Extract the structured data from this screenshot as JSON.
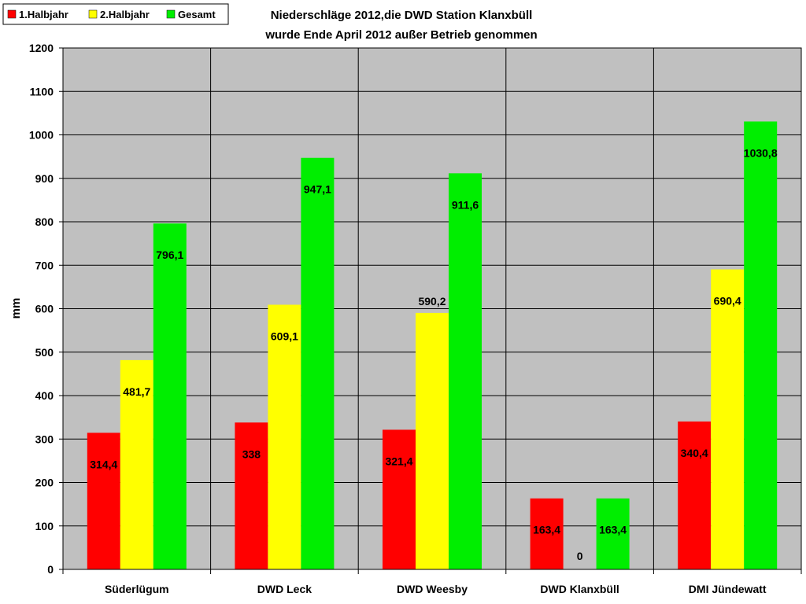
{
  "chart_data": {
    "type": "bar",
    "title_line1": "Niederschläge 2012,die DWD Station Klanxbüll",
    "title_line2": "wurde Ende April 2012 außer Betrieb genommen",
    "ylabel": "mm",
    "xlabel": "",
    "ylim": [
      0,
      1200
    ],
    "ytick_step": 100,
    "grid": true,
    "legend_position": "top-left",
    "categories": [
      "Süderlügum",
      "DWD Leck",
      "DWD Weesby",
      "DWD Klanxbüll",
      "DMI Jündewatt"
    ],
    "series": [
      {
        "name": "1.Halbjahr",
        "color": "#ff0000",
        "values": [
          314.4,
          338,
          321.4,
          163.4,
          340.4
        ],
        "labels": [
          "314,4",
          "338",
          "321,4",
          "163,4",
          "340,4"
        ]
      },
      {
        "name": "2.Halbjahr",
        "color": "#ffff00",
        "values": [
          481.7,
          609.1,
          590.2,
          0,
          690.4
        ],
        "labels": [
          "481,7",
          "609,1",
          "590,2",
          "0",
          "690,4"
        ]
      },
      {
        "name": "Gesamt",
        "color": "#00ee00",
        "values": [
          796.1,
          947.1,
          911.6,
          163.4,
          1030.8
        ],
        "labels": [
          "796,1",
          "947,1",
          "911,6",
          "163,4",
          "1030,8"
        ]
      }
    ],
    "colors": {
      "plot_background": "#c0c0c0",
      "border": "#000000"
    }
  }
}
